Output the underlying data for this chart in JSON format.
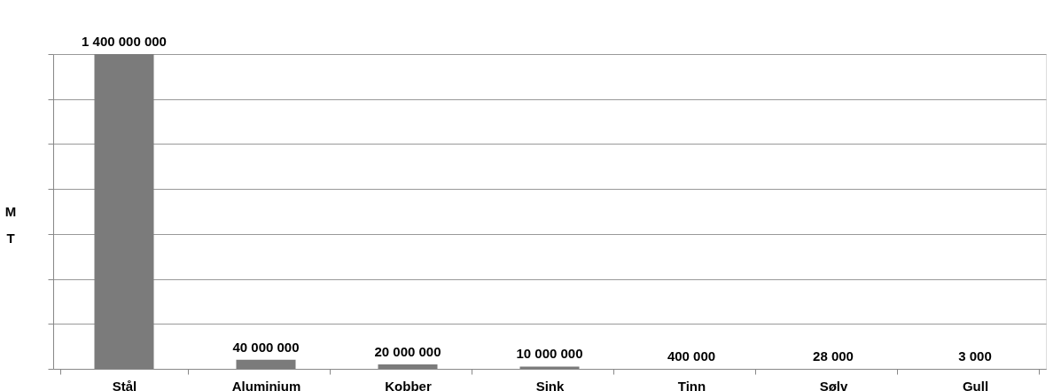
{
  "chart_data": {
    "type": "bar",
    "ylabel": "MT",
    "categories": [
      "Stål",
      "Aluminium",
      "Kobber",
      "Sink",
      "Tinn",
      "Sølv",
      "Gull"
    ],
    "values": [
      1400000000,
      40000000,
      20000000,
      10000000,
      400000,
      28000,
      3000
    ],
    "color": "#7b7b7b",
    "value_labels": [
      "1 400 000 000",
      "40 000 000",
      "20 000 000",
      "10 000 000",
      "400 000",
      "28 000",
      "3 000"
    ],
    "ylim": [
      0,
      1400000000
    ],
    "yticks": [
      {
        "value": 0,
        "label": null
      },
      {
        "value": 200000000,
        "label": null
      },
      {
        "value": 400000000,
        "label": null
      },
      {
        "value": 600000000,
        "label": null
      },
      {
        "value": 800000000,
        "label": null
      },
      {
        "value": 1000000000,
        "label": null
      },
      {
        "value": 1200000000,
        "label": null
      },
      {
        "value": 1400000000,
        "label": null
      }
    ],
    "grid": "y",
    "tick_labels": "x"
  }
}
